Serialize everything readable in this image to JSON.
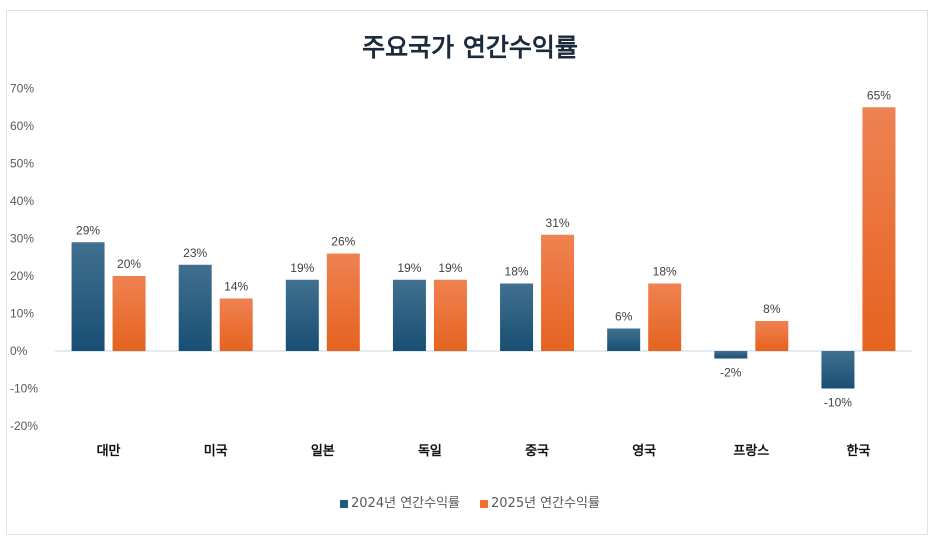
{
  "chart_data": {
    "type": "bar",
    "title": "주요국가 연간수익률",
    "categories": [
      "대만",
      "미국",
      "일본",
      "독일",
      "중국",
      "영국",
      "프랑스",
      "한국"
    ],
    "series": [
      {
        "name": "2024년 연간수익률",
        "values": [
          29,
          23,
          19,
          19,
          18,
          6,
          -2,
          -10
        ],
        "color": "#1f5a80"
      },
      {
        "name": "2025년 연간수익률",
        "values": [
          20,
          14,
          26,
          19,
          31,
          18,
          8,
          65
        ],
        "color": "#f07030"
      }
    ],
    "ylim": [
      -20,
      70
    ],
    "yticks": [
      "-20%",
      "-10%",
      "0%",
      "10%",
      "20%",
      "30%",
      "40%",
      "50%",
      "60%",
      "70%"
    ],
    "grid": false,
    "legend": "bottom"
  }
}
